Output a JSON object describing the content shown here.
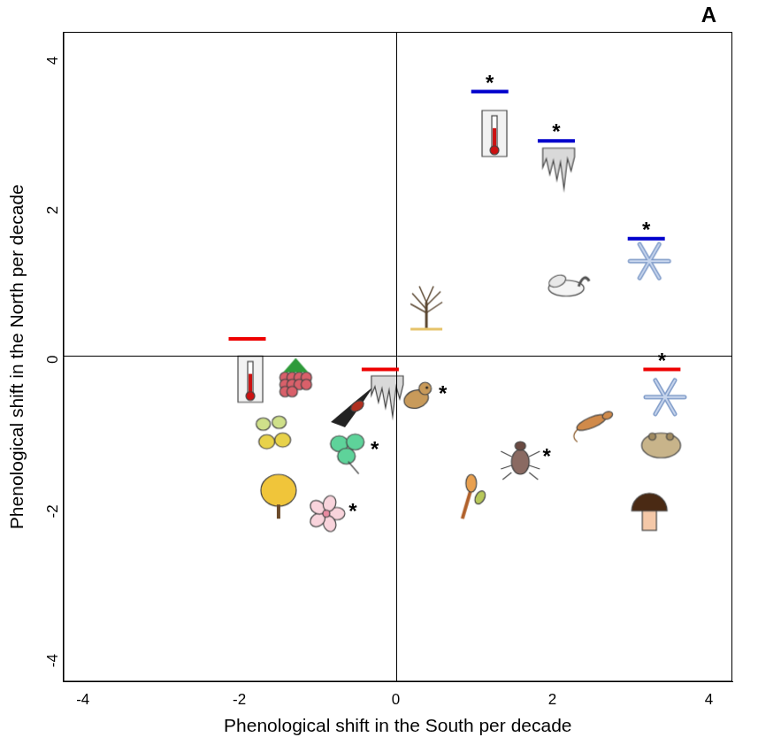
{
  "chart_data": {
    "type": "scatter",
    "panel_label": "A",
    "x_label": "Phenological shift in the South per decade",
    "y_label": "Phenological shift in the North per decade",
    "xlim": [
      -4.25,
      4.3
    ],
    "ylim": [
      -4.37,
      4.33
    ],
    "xticks": [
      -4,
      -2,
      0,
      2,
      4
    ],
    "yticks": [
      -4,
      -2,
      0,
      2,
      4
    ],
    "grid": false,
    "hlines": [
      0
    ],
    "vlines": [
      0
    ],
    "points": [
      {
        "x": 1.26,
        "y": 2.97,
        "marker": "thermometer"
      },
      {
        "x": 2.08,
        "y": 2.49,
        "marker": "icicle"
      },
      {
        "x": 3.24,
        "y": 1.26,
        "marker": "snowflake"
      },
      {
        "x": 2.2,
        "y": 0.97,
        "marker": "swan"
      },
      {
        "x": 0.39,
        "y": 0.64,
        "marker": "bare_tree"
      },
      {
        "x": -1.86,
        "y": -0.32,
        "marker": "thermometer"
      },
      {
        "x": -1.28,
        "y": -0.32,
        "marker": "raspberry"
      },
      {
        "x": -0.56,
        "y": -0.68,
        "marker": "swallow"
      },
      {
        "x": -0.11,
        "y": -0.56,
        "marker": "icicle"
      },
      {
        "x": 0.26,
        "y": -0.54,
        "marker": "songbird",
        "label": "*"
      },
      {
        "x": -1.56,
        "y": -1.04,
        "marker": "leaves"
      },
      {
        "x": -0.61,
        "y": -1.28,
        "marker": "clover",
        "label": "*"
      },
      {
        "x": -1.5,
        "y": -1.88,
        "marker": "yellow_tree"
      },
      {
        "x": -0.89,
        "y": -2.12,
        "marker": "blossom",
        "label": "*"
      },
      {
        "x": 0.94,
        "y": -1.88,
        "marker": "bud"
      },
      {
        "x": 1.59,
        "y": -1.38,
        "marker": "beetle",
        "label": "*"
      },
      {
        "x": 2.5,
        "y": -0.9,
        "marker": "lizard"
      },
      {
        "x": 3.44,
        "y": -0.56,
        "marker": "snowflake"
      },
      {
        "x": 3.39,
        "y": -1.16,
        "marker": "toad"
      },
      {
        "x": 3.24,
        "y": -2.06,
        "marker": "mushroom"
      }
    ],
    "bars": [
      {
        "x": 1.2,
        "y": 3.53,
        "color": "#0000cc",
        "label": "*"
      },
      {
        "x": 2.05,
        "y": 2.87,
        "color": "#0000cc",
        "label": "*"
      },
      {
        "x": 3.2,
        "y": 1.56,
        "color": "#0000cc",
        "label": "*"
      },
      {
        "x": -1.9,
        "y": 0.22,
        "color": "#ee0000"
      },
      {
        "x": -0.2,
        "y": -0.19,
        "color": "#ee0000"
      },
      {
        "x": 3.4,
        "y": -0.19,
        "color": "#ee0000",
        "label": "*"
      }
    ]
  }
}
